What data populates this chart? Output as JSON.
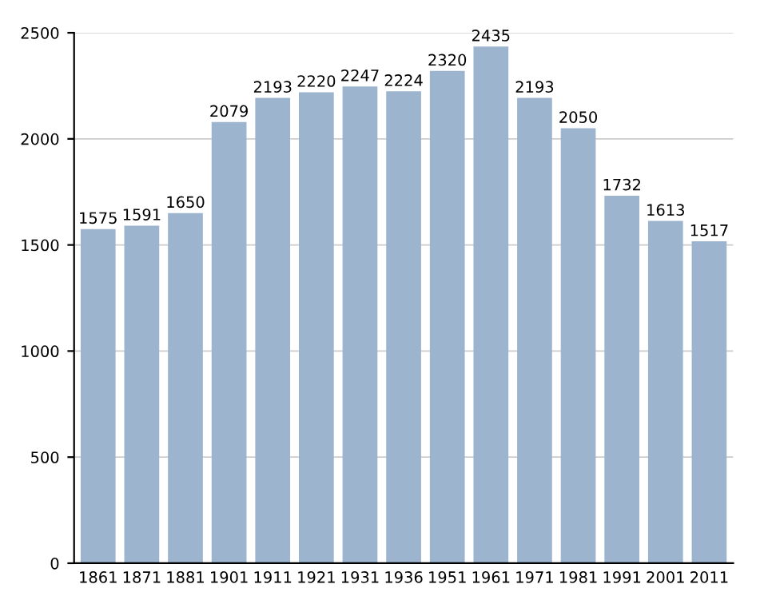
{
  "chart_data": {
    "type": "bar",
    "categories": [
      "1861",
      "1871",
      "1881",
      "1901",
      "1911",
      "1921",
      "1931",
      "1936",
      "1951",
      "1961",
      "1971",
      "1981",
      "1991",
      "2001",
      "2011"
    ],
    "values": [
      1575,
      1591,
      1650,
      2079,
      2193,
      2220,
      2247,
      2224,
      2320,
      2435,
      2193,
      2050,
      1732,
      1613,
      1517
    ],
    "color": "#9db4cf",
    "ylim": [
      0,
      2500
    ],
    "yticks": [
      0,
      500,
      1000,
      1500,
      2000,
      2500
    ],
    "grid": "y",
    "data_labels": true
  }
}
